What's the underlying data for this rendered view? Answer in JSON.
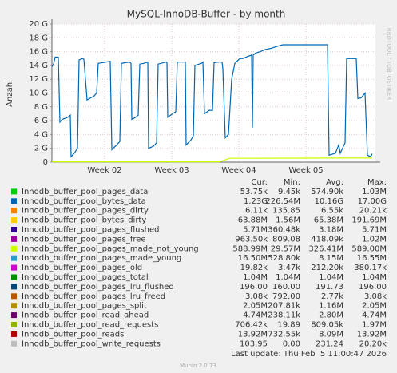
{
  "chart_data": {
    "type": "line",
    "title": "MySQL-InnoDB-Buffer - by month",
    "ylabel": "Anzahl",
    "side_text": "RRDTOOL / TOBI OETIKER",
    "last_update": "Last update: Thu Feb  5 11:00:47 2026",
    "footer": "Munin 2.0.73",
    "xlim": [
      0,
      33.75
    ],
    "xticks": [
      {
        "value": 5.5,
        "label": "Week 02"
      },
      {
        "value": 12.5,
        "label": "Week 03"
      },
      {
        "value": 19.5,
        "label": "Week 04"
      },
      {
        "value": 26.5,
        "label": "Week 05"
      }
    ],
    "ylim": [
      0,
      20
    ],
    "yticks": [
      0,
      {
        "value": 2,
        "label": "2 G"
      },
      {
        "value": 4,
        "label": "4 G"
      },
      {
        "value": 6,
        "label": "6 G"
      },
      {
        "value": 8,
        "label": "8 G"
      },
      {
        "value": 10,
        "label": "10 G"
      },
      {
        "value": 12,
        "label": "12 G"
      },
      {
        "value": 14,
        "label": "14 G"
      },
      {
        "value": 16,
        "label": "16 G"
      },
      {
        "value": 18,
        "label": "18 G"
      },
      {
        "value": 20,
        "label": "20 G"
      }
    ],
    "grid": true,
    "legend_columns": [
      "Cur:",
      "Min:",
      "Avg:",
      "Max:"
    ],
    "series": [
      {
        "name": "Innodb_buffer_pool_pages_data",
        "color": "#00cc00",
        "stats": [
          "53.75k",
          "9.45k",
          "574.90k",
          "1.03M"
        ]
      },
      {
        "name": "Innodb_buffer_pool_bytes_data",
        "color": "#0066b3",
        "stats": [
          "1.23G",
          "226.54M",
          "10.16G",
          "17.00G"
        ],
        "x": [
          0,
          0.17,
          0.33,
          0.67,
          0.83,
          1.08,
          1.67,
          1.92,
          2.0,
          2.33,
          2.67,
          2.83,
          3.17,
          3.33,
          3.67,
          4.42,
          4.67,
          4.83,
          5.67,
          6.08,
          6.25,
          6.75,
          7.08,
          7.25,
          8.08,
          8.25,
          8.33,
          8.75,
          9.0,
          9.17,
          9.58,
          10.0,
          10.08,
          10.58,
          10.92,
          11.08,
          11.92,
          12.0,
          12.08,
          12.58,
          12.92,
          13.08,
          13.75,
          13.92,
          14.0,
          14.5,
          14.75,
          14.92,
          15.58,
          15.75,
          15.92,
          16.42,
          16.75,
          16.92,
          17.42,
          17.75,
          17.83,
          18.08,
          18.42,
          18.75,
          19.08,
          19.58,
          19.92,
          20.42,
          20.83,
          20.92,
          21.0,
          21.25,
          21.75,
          22.25,
          22.92,
          23.58,
          24.08,
          24.58,
          26.25,
          28.75,
          28.92,
          29.58,
          29.92,
          30.08,
          30.42,
          30.58,
          30.75,
          31.33,
          31.75,
          31.92,
          32.25,
          32.67,
          32.92,
          33.25,
          33.42
        ],
        "values": [
          13.8,
          14.2,
          15.2,
          15.2,
          5.8,
          6.2,
          6.5,
          6.8,
          0.8,
          1.3,
          2.0,
          14.8,
          15.0,
          14.9,
          9.0,
          9.6,
          10.0,
          14.3,
          14.5,
          14.6,
          1.8,
          2.5,
          3.0,
          14.3,
          14.5,
          14.3,
          6.2,
          6.5,
          6.8,
          14.2,
          14.3,
          14.5,
          2.0,
          2.3,
          2.8,
          14.2,
          14.5,
          14.4,
          6.5,
          7.0,
          7.3,
          14.5,
          14.5,
          14.5,
          2.5,
          3.2,
          3.8,
          14.0,
          14.3,
          14.5,
          7.0,
          7.5,
          7.5,
          14.4,
          14.5,
          14.5,
          13.5,
          3.5,
          4.0,
          12.0,
          14.3,
          15.0,
          15.0,
          15.3,
          15.5,
          5.0,
          15.5,
          15.8,
          16.0,
          16.3,
          16.5,
          16.8,
          17.0,
          17.0,
          17.0,
          17.0,
          1.0,
          1.3,
          2.5,
          1.3,
          2.3,
          2.8,
          15.0,
          15.0,
          15.0,
          9.2,
          9.3,
          10.0,
          1.0,
          0.8,
          1.2
        ]
      },
      {
        "name": "Innodb_buffer_pool_pages_dirty",
        "color": "#ff8000",
        "stats": [
          "6.11k",
          "135.85",
          "6.55k",
          "20.21k"
        ]
      },
      {
        "name": "Innodb_buffer_pool_bytes_dirty",
        "color": "#ffcc00",
        "stats": [
          "63.88M",
          "1.56M",
          "65.38M",
          "191.69M"
        ]
      },
      {
        "name": "Innodb_buffer_pool_pages_flushed",
        "color": "#330099",
        "stats": [
          "5.71M",
          "360.48k",
          "3.18M",
          "5.71M"
        ]
      },
      {
        "name": "Innodb_buffer_pool_pages_free",
        "color": "#990099",
        "stats": [
          "963.50k",
          "809.08",
          "418.09k",
          "1.02M"
        ]
      },
      {
        "name": "Innodb_buffer_pool_pages_made_not_young",
        "color": "#ccff00",
        "stats": [
          "588.99M",
          "29.57M",
          "326.41M",
          "589.00M"
        ],
        "x": [
          0,
          17.5,
          18.5,
          28.75,
          33.42
        ],
        "values": [
          0.05,
          0.05,
          0.55,
          0.59,
          0.59
        ]
      },
      {
        "name": "Innodb_buffer_pool_pages_made_young",
        "color": "#3399cc",
        "stats": [
          "16.50M",
          "528.80k",
          "8.15M",
          "16.55M"
        ]
      },
      {
        "name": "Innodb_buffer_pool_pages_old",
        "color": "#cc00cc",
        "stats": [
          "19.82k",
          "3.47k",
          "212.20k",
          "380.17k"
        ]
      },
      {
        "name": "Innodb_buffer_pool_pages_total",
        "color": "#008f00",
        "stats": [
          "1.04M",
          "1.04M",
          "1.04M",
          "1.04M"
        ]
      },
      {
        "name": "Innodb_buffer_pool_pages_lru_flushed",
        "color": "#00487d",
        "stats": [
          "196.00",
          "160.00",
          "191.73",
          "196.00"
        ]
      },
      {
        "name": "Innodb_buffer_pool_pages_lru_freed",
        "color": "#b35a00",
        "stats": [
          "3.08k",
          "792.00",
          "2.77k",
          "3.08k"
        ]
      },
      {
        "name": "Innodb_buffer_pool_pages_split",
        "color": "#b38f00",
        "stats": [
          "2.05M",
          "207.81k",
          "1.16M",
          "2.05M"
        ]
      },
      {
        "name": "Innodb_buffer_pool_read_ahead",
        "color": "#6b006b",
        "stats": [
          "4.74M",
          "238.11k",
          "2.80M",
          "4.74M"
        ]
      },
      {
        "name": "Innodb_buffer_pool_read_requests",
        "color": "#8fb300",
        "stats": [
          "706.42k",
          "19.89",
          "809.05k",
          "1.97M"
        ]
      },
      {
        "name": "Innodb_buffer_pool_reads",
        "color": "#b30000",
        "stats": [
          "13.92M",
          "732.55k",
          "8.09M",
          "13.92M"
        ]
      },
      {
        "name": "Innodb_buffer_pool_write_requests",
        "color": "#bebebe",
        "stats": [
          "103.95",
          "0.00",
          "231.24",
          "20.20k"
        ]
      }
    ]
  }
}
